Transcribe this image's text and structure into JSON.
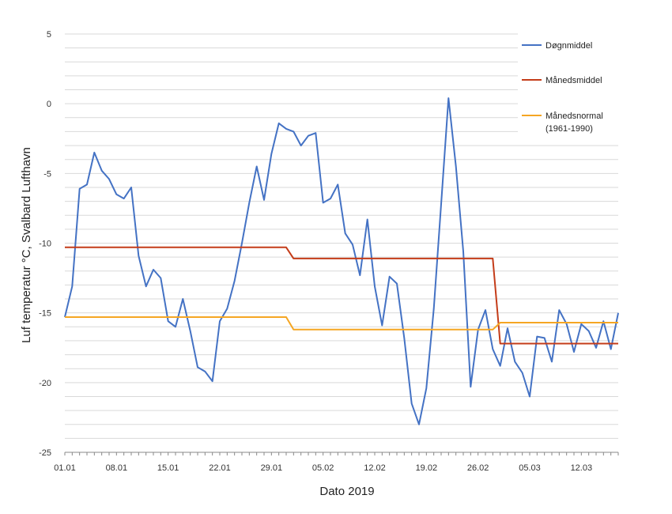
{
  "chart_data": {
    "type": "line",
    "title": "",
    "xlabel": "Dato 2019",
    "ylabel": "Luf temperatur  °C, Svalbard Lufthavn",
    "ylim": [
      -25,
      5
    ],
    "yticks": [
      5,
      0,
      -5,
      -10,
      -15,
      -20,
      -25
    ],
    "xtick_labels": [
      "01.01",
      "08.01",
      "15.01",
      "22.01",
      "29.01",
      "05.02",
      "12.02",
      "19.02",
      "26.02",
      "05.03",
      "12.03"
    ],
    "xtick_days": [
      0,
      7,
      14,
      21,
      28,
      35,
      42,
      49,
      56,
      63,
      70
    ],
    "grid": true,
    "legend_position": "top-right",
    "series": [
      {
        "name": "Døgnmiddel",
        "color": "#4472c4",
        "day_start": 0,
        "values": [
          -15.3,
          -13.1,
          -6.1,
          -5.8,
          -3.5,
          -4.8,
          -5.4,
          -6.5,
          -6.8,
          -6.0,
          -10.9,
          -13.1,
          -11.9,
          -12.5,
          -15.6,
          -16.0,
          -14.0,
          -16.3,
          -18.9,
          -19.2,
          -19.9,
          -15.6,
          -14.7,
          -12.7,
          -10.0,
          -7.1,
          -4.5,
          -6.9,
          -3.6,
          -1.4,
          -1.8,
          -2.0,
          -3.0,
          -2.3,
          -2.1,
          -7.1,
          -6.8,
          -5.8,
          -9.3,
          -10.1,
          -12.3,
          -8.3,
          -13.1,
          -15.9,
          -12.4,
          -12.9,
          -16.8,
          -21.5,
          -23.0,
          -20.4,
          -14.7,
          -7.2,
          0.4,
          -4.5,
          -10.6,
          -20.3,
          -16.2,
          -14.8,
          -17.6,
          -18.8,
          -16.1,
          -18.5,
          -19.3,
          -21.0,
          -16.7,
          -16.8,
          -18.5,
          -14.8,
          -15.8,
          -17.8,
          -15.8,
          -16.3,
          -17.5,
          -15.6,
          -17.6,
          -15.0
        ]
      },
      {
        "name": "Månedsmiddel",
        "color": "#c43c19",
        "segments": [
          {
            "from_day": 0,
            "to_day": 30,
            "value": -10.3
          },
          {
            "from_day": 31,
            "to_day": 58,
            "value": -11.1
          },
          {
            "from_day": 59,
            "to_day": 75,
            "value": -17.2
          }
        ]
      },
      {
        "name": "Månedsnormal",
        "name_line2": "(1961-1990)",
        "color": "#f5a623",
        "segments": [
          {
            "from_day": 0,
            "to_day": 30,
            "value": -15.3
          },
          {
            "from_day": 31,
            "to_day": 58,
            "value": -16.2
          },
          {
            "from_day": 59,
            "to_day": 75,
            "value": -15.7
          }
        ]
      }
    ]
  }
}
